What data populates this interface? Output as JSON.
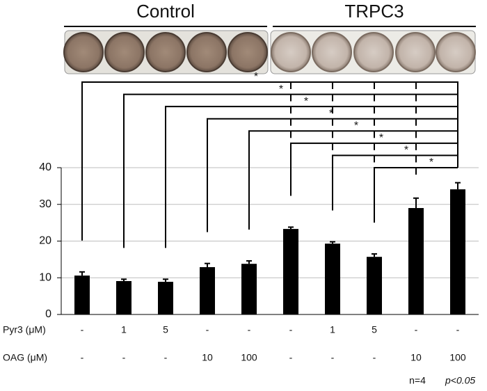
{
  "chart_data": {
    "type": "bar",
    "groups": [
      "Control",
      "TRPC3"
    ],
    "values": [
      10.6,
      9.1,
      8.9,
      12.9,
      13.8,
      23.3,
      19.3,
      15.7,
      29.0,
      34.1
    ],
    "errors": [
      1.0,
      0.5,
      0.7,
      1.0,
      0.8,
      0.5,
      0.5,
      0.8,
      2.7,
      1.8
    ],
    "color": "#000000",
    "ylim": [
      0,
      40
    ],
    "yticks": [
      0,
      10,
      20,
      30,
      40
    ],
    "grid": true,
    "treatments": [
      {
        "name": "Pyr3 (μM)",
        "labels": [
          "-",
          "1",
          "5",
          "-",
          "-",
          "-",
          "1",
          "5",
          "-",
          "-"
        ]
      },
      {
        "name": "OAG (μM)",
        "labels": [
          "-",
          "-",
          "-",
          "10",
          "100",
          "-",
          "-",
          "-",
          "10",
          "100"
        ]
      }
    ],
    "comparisons": [
      {
        "from": 0,
        "to": 9,
        "label": "*"
      },
      {
        "from": 1,
        "to": 9,
        "label": "*"
      },
      {
        "from": 2,
        "to": 9,
        "label": "*"
      },
      {
        "from": 3,
        "to": 9,
        "label": "*"
      },
      {
        "from": 4,
        "to": 9,
        "label": "*"
      },
      {
        "from": 5,
        "to": 9,
        "label": "*"
      },
      {
        "from": 6,
        "to": 9,
        "label": "*"
      },
      {
        "from": 7,
        "to": 9,
        "label": "*"
      }
    ],
    "note": "n=4",
    "significance": "p<0.05"
  }
}
